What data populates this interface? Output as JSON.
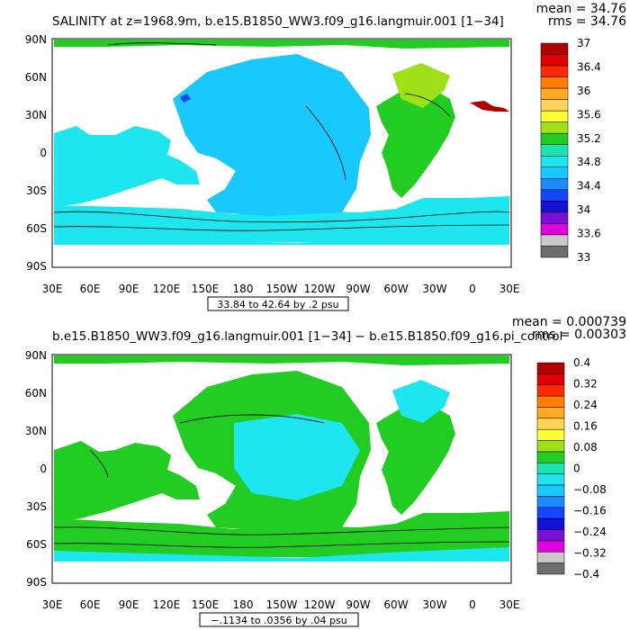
{
  "top": {
    "title": "SALINITY at z=1968.9m, b.e15.B1850_WW3.f09_g16.langmuir.001 [1−34]",
    "stat_mean": "mean = 34.76",
    "stat_rms": "rms = 34.76",
    "contour_info": "33.84 to 42.64 by .2 psu",
    "lat_labels": [
      "90N",
      "60N",
      "30N",
      "0",
      "30S",
      "60S",
      "90S"
    ],
    "lon_labels": [
      "30E",
      "60E",
      "90E",
      "120E",
      "150E",
      "180",
      "150W",
      "120W",
      "90W",
      "60W",
      "30W",
      "0",
      "30E"
    ],
    "colorbar": {
      "labels": [
        "37",
        "36.4",
        "36",
        "35.6",
        "35.2",
        "34.8",
        "34.4",
        "34",
        "33.6",
        "33"
      ],
      "colors": [
        "#b10000",
        "#e00000",
        "#ff2a00",
        "#ff7f00",
        "#ffaa22",
        "#ffd35a",
        "#ffff33",
        "#a0e018",
        "#22cc22",
        "#1de3b4",
        "#1ee6ee",
        "#18c8ff",
        "#1a8cff",
        "#1446ff",
        "#1410d6",
        "#7a10d6",
        "#e000e0",
        "#c8c8c8",
        "#6e6e6e"
      ]
    }
  },
  "bottom": {
    "title": "b.e15.B1850_WW3.f09_g16.langmuir.001 [1−34] − b.e15.B1850.f09_g16.pi_control",
    "stat_mean": "mean = 0.000739",
    "stat_rms": "rms = 0.00303",
    "contour_info": "−.1134 to .0356 by .04 psu",
    "lat_labels": [
      "90N",
      "60N",
      "30N",
      "0",
      "30S",
      "60S",
      "90S"
    ],
    "lon_labels": [
      "30E",
      "60E",
      "90E",
      "120E",
      "150E",
      "180",
      "150W",
      "120W",
      "90W",
      "60W",
      "30W",
      "0",
      "30E"
    ],
    "colorbar": {
      "labels": [
        "0.4",
        "0.32",
        "0.24",
        "0.16",
        "0.08",
        "0",
        "−0.08",
        "−0.16",
        "−0.24",
        "−0.32",
        "−0.4"
      ],
      "colors": [
        "#b10000",
        "#e00000",
        "#ff2a00",
        "#ff7f00",
        "#ffaa22",
        "#ffd35a",
        "#ffff33",
        "#a0e018",
        "#22cc22",
        "#1de3b4",
        "#1ee6ee",
        "#18c8ff",
        "#1a8cff",
        "#1446ff",
        "#1410d6",
        "#7a10d6",
        "#e000e0",
        "#c8c8c8",
        "#6e6e6e"
      ]
    }
  },
  "fills": {
    "cyan": "#1ee6ee",
    "sky": "#18c8ff",
    "green": "#22cc22",
    "light_green": "#a0e018",
    "teal": "#1de3b4",
    "blue": "#1446ff",
    "dark_red": "#b10000"
  }
}
